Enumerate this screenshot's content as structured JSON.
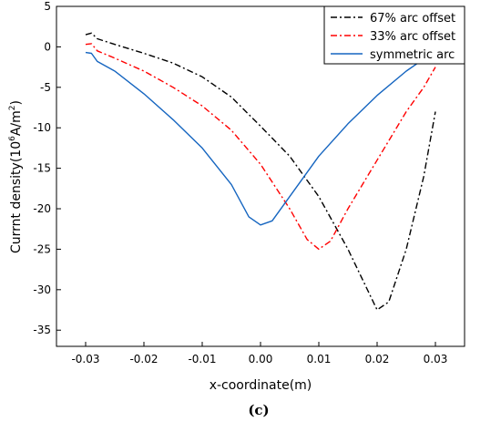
{
  "chart_data": {
    "type": "line",
    "xlabel": "x-coordinate(m)",
    "ylabel": "Currnt density(10^6A/m^2)",
    "ylabel_parts": {
      "main": "Currnt density(10",
      "exp1": "6",
      "mid": "A/m",
      "exp2": "2",
      "end": ")"
    },
    "panel_label": "(c)",
    "xlim": [
      -0.035,
      0.035
    ],
    "ylim": [
      -37,
      5
    ],
    "x_ticks": [
      -0.03,
      -0.02,
      -0.01,
      0.0,
      0.01,
      0.02,
      0.03
    ],
    "x_tick_labels": [
      "-0.03",
      "-0.02",
      "-0.01",
      "0.00",
      "0.01",
      "0.02",
      "0.03"
    ],
    "y_ticks": [
      5,
      0,
      -5,
      -10,
      -15,
      -20,
      -25,
      -30,
      -35
    ],
    "y_tick_labels": [
      "5",
      "0",
      "-5",
      "-10",
      "-15",
      "-20",
      "-25",
      "-30",
      "-35"
    ],
    "grid": false,
    "legend_position": "top-right",
    "series": [
      {
        "name": "67% arc offset",
        "color": "#000000",
        "style": "dash-dot",
        "x": [
          -0.03,
          -0.029,
          -0.028,
          -0.025,
          -0.02,
          -0.015,
          -0.01,
          -0.005,
          0.0,
          0.005,
          0.01,
          0.015,
          0.018,
          0.02,
          0.022,
          0.025,
          0.028,
          0.03
        ],
        "y": [
          1.5,
          1.7,
          1.0,
          0.3,
          -0.8,
          -2.0,
          -3.7,
          -6.2,
          -9.8,
          -13.5,
          -18.5,
          -25.0,
          -29.5,
          -32.5,
          -31.5,
          -25.0,
          -16.0,
          -8.0
        ]
      },
      {
        "name": "33% arc offset",
        "color": "#ff0000",
        "style": "dash-dot",
        "x": [
          -0.03,
          -0.029,
          -0.028,
          -0.025,
          -0.02,
          -0.015,
          -0.01,
          -0.005,
          0.0,
          0.005,
          0.008,
          0.01,
          0.012,
          0.015,
          0.02,
          0.025,
          0.028,
          0.03
        ],
        "y": [
          0.3,
          0.4,
          -0.5,
          -1.4,
          -3.0,
          -5.0,
          -7.3,
          -10.3,
          -14.5,
          -20.0,
          -23.8,
          -25.0,
          -24.0,
          -20.0,
          -14.0,
          -8.0,
          -5.0,
          -2.5
        ]
      },
      {
        "name": "symmetric arc",
        "color": "#1565c0",
        "style": "solid",
        "x": [
          -0.03,
          -0.029,
          -0.028,
          -0.025,
          -0.02,
          -0.015,
          -0.01,
          -0.005,
          -0.002,
          0.0,
          0.002,
          0.005,
          0.01,
          0.015,
          0.02,
          0.025,
          0.028,
          0.03
        ],
        "y": [
          -0.7,
          -0.8,
          -1.8,
          -3.0,
          -5.8,
          -9.0,
          -12.5,
          -17.0,
          -21.0,
          -22.0,
          -21.5,
          -18.5,
          -13.5,
          -9.5,
          -6.0,
          -3.0,
          -1.5,
          0.5
        ]
      }
    ]
  }
}
